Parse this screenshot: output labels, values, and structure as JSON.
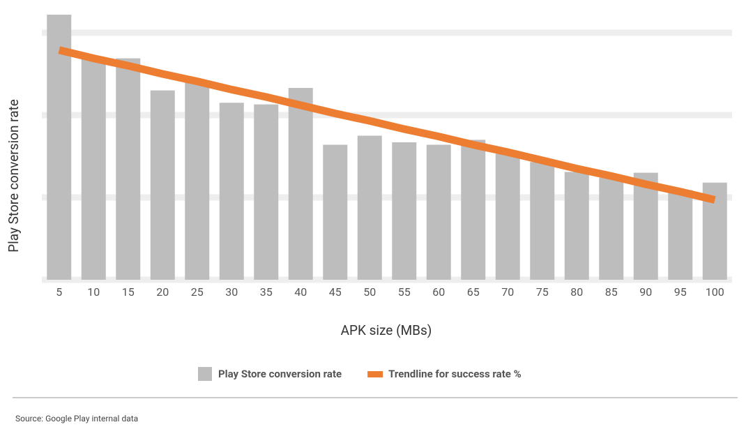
{
  "chart_data": {
    "type": "bar",
    "x_label": "APK size (MBs)",
    "y_label": "Play Store conversion rate",
    "categories": [
      "5",
      "10",
      "15",
      "20",
      "25",
      "30",
      "35",
      "40",
      "45",
      "50",
      "55",
      "60",
      "65",
      "70",
      "75",
      "80",
      "85",
      "90",
      "95",
      "100"
    ],
    "series": [
      {
        "name": "Play Store conversion rate",
        "type": "bar",
        "color": "#bdbdbd",
        "values": [
          3.22,
          2.68,
          2.69,
          2.3,
          2.4,
          2.15,
          2.13,
          2.33,
          1.64,
          1.75,
          1.67,
          1.64,
          1.7,
          1.53,
          1.43,
          1.31,
          1.24,
          1.3,
          1.09,
          1.18
        ]
      },
      {
        "name": "Trendline for success rate %",
        "type": "line",
        "color": "#ed7d31",
        "values": [
          2.79,
          2.69,
          2.6,
          2.5,
          2.41,
          2.31,
          2.22,
          2.12,
          2.02,
          1.93,
          1.83,
          1.74,
          1.64,
          1.55,
          1.45,
          1.35,
          1.26,
          1.16,
          1.07,
          0.97
        ]
      }
    ],
    "ylim": [
      0,
      3.3
    ],
    "gridlines": [
      0,
      1,
      2,
      3
    ],
    "grid": true,
    "legend": "bottom",
    "source": "Source: Google Play internal data"
  }
}
